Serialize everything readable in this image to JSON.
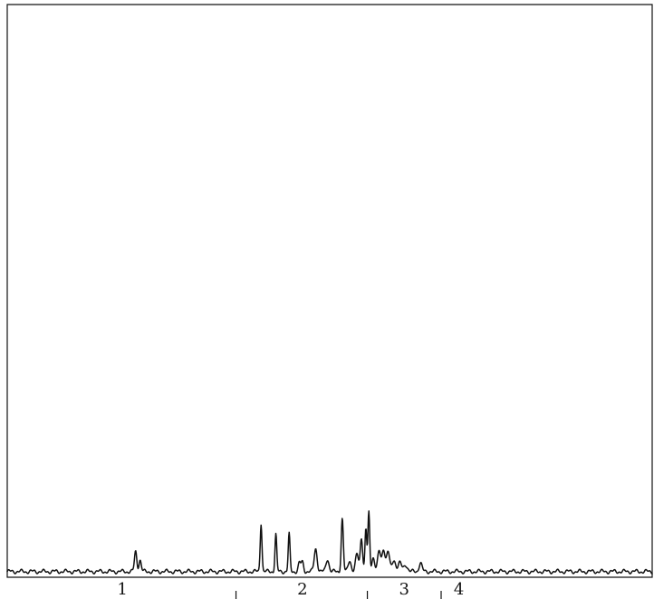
{
  "chart_data": {
    "type": "line",
    "title": "",
    "xlabel": "",
    "ylabel": "",
    "grid": false,
    "xlim": [
      0,
      4.37
    ],
    "ylim": [
      0,
      100
    ],
    "segment_dividers": [
      1.55,
      2.44,
      2.94
    ],
    "segment_labels": [
      {
        "label": "1",
        "x": 0.78
      },
      {
        "label": "2",
        "x": 2.0
      },
      {
        "label": "3",
        "x": 2.69
      },
      {
        "label": "4",
        "x": 3.06
      }
    ],
    "series": [
      {
        "baseline": 1,
        "peaks": [
          {
            "x": 0.87,
            "h": 3.5,
            "w": 0.008
          },
          {
            "x": 0.9,
            "h": 2,
            "w": 0.008
          },
          {
            "x": 1.72,
            "h": 8.5,
            "w": 0.006
          },
          {
            "x": 1.82,
            "h": 6.5,
            "w": 0.006
          },
          {
            "x": 1.91,
            "h": 6.5,
            "w": 0.006
          },
          {
            "x": 1.98,
            "h": 1.5,
            "w": 0.008
          },
          {
            "x": 2.0,
            "h": 1.6,
            "w": 0.008
          },
          {
            "x": 2.09,
            "h": 4,
            "w": 0.01
          },
          {
            "x": 2.17,
            "h": 2.2,
            "w": 0.01
          },
          {
            "x": 2.27,
            "h": 9.2,
            "w": 0.007
          },
          {
            "x": 2.32,
            "h": 2,
            "w": 0.01
          },
          {
            "x": 2.37,
            "h": 3,
            "w": 0.01
          },
          {
            "x": 2.4,
            "h": 6,
            "w": 0.008
          },
          {
            "x": 2.43,
            "h": 7.5,
            "w": 0.006
          },
          {
            "x": 2.45,
            "h": 10.2,
            "w": 0.006
          },
          {
            "x": 2.48,
            "h": 2.5,
            "w": 0.01
          },
          {
            "x": 2.52,
            "h": 3.5,
            "w": 0.01
          },
          {
            "x": 2.55,
            "h": 4,
            "w": 0.01
          },
          {
            "x": 2.58,
            "h": 3.5,
            "w": 0.01
          },
          {
            "x": 2.62,
            "h": 2,
            "w": 0.012
          },
          {
            "x": 2.66,
            "h": 1.5,
            "w": 0.012
          },
          {
            "x": 2.7,
            "h": 1.2,
            "w": 0.012
          },
          {
            "x": 2.8,
            "h": 1.5,
            "w": 0.01
          }
        ]
      }
    ]
  }
}
